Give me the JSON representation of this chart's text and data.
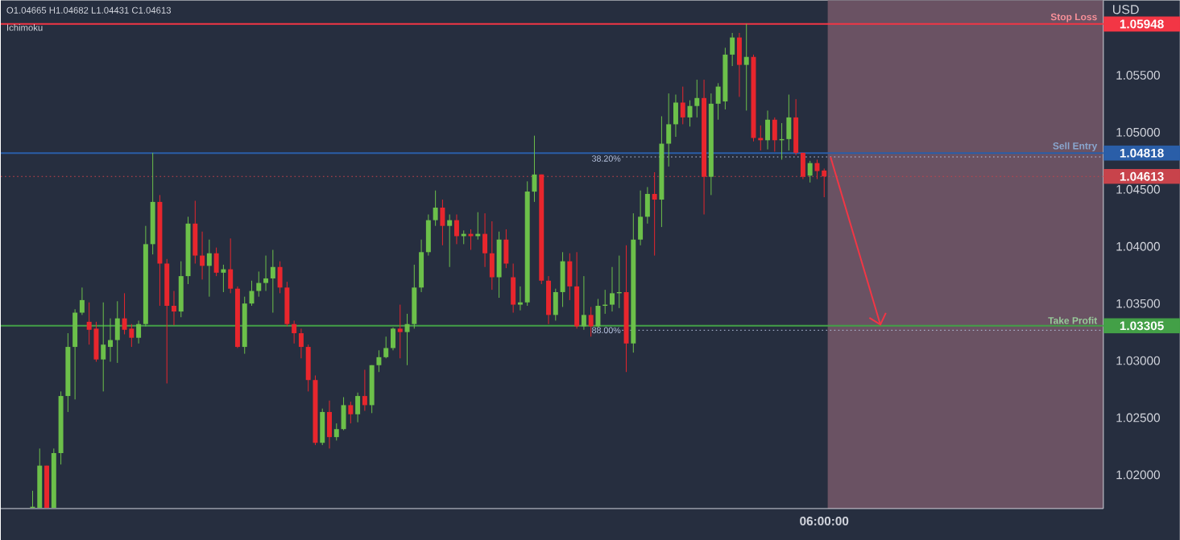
{
  "chart_data": {
    "type": "candlestick",
    "categories": [
      null,
      null,
      null,
      null,
      null,
      null,
      null,
      null,
      null,
      null,
      null,
      null,
      null,
      null,
      null,
      null,
      null,
      null,
      null,
      null,
      null,
      null,
      null,
      null,
      null,
      null,
      null,
      null,
      null,
      null,
      null,
      null,
      null,
      null,
      null,
      null,
      null,
      null,
      null,
      null,
      null,
      null,
      null,
      null,
      null,
      null,
      null,
      null,
      null,
      null,
      null,
      null,
      null,
      null,
      null,
      null,
      null,
      null,
      null,
      null,
      null,
      null,
      null,
      null,
      null,
      null,
      null,
      null,
      null,
      null,
      null,
      null,
      null,
      null,
      null,
      null,
      null,
      null,
      null,
      null,
      null,
      null,
      null,
      null,
      null,
      null,
      null,
      null,
      null,
      null,
      null,
      null,
      null,
      null,
      null,
      null,
      null,
      null,
      null,
      null,
      null,
      null,
      null,
      null,
      null,
      null,
      null,
      null,
      null,
      null,
      null,
      null,
      null,
      null,
      null,
      null,
      "06:00:00",
      null,
      null,
      null,
      null,
      null,
      null,
      null,
      null,
      null,
      null,
      null,
      null,
      null,
      null,
      null,
      null,
      null,
      null,
      null,
      null,
      null,
      null,
      null,
      null,
      null,
      null,
      null,
      null,
      null,
      null,
      null,
      null,
      null,
      null,
      null,
      null,
      null,
      null,
      null
    ],
    "ohlc": [
      null,
      null,
      null,
      null,
      [
        1.0171,
        1.0186,
        1.0171,
        1.0172
      ],
      [
        1.0171,
        1.0223,
        1.0171,
        1.0208
      ],
      [
        1.0208,
        1.0208,
        1.0171,
        1.0171
      ],
      [
        1.0171,
        1.0223,
        1.0171,
        1.0219
      ],
      [
        1.0219,
        1.0273,
        1.0209,
        1.0269
      ],
      [
        1.0269,
        1.0324,
        1.0255,
        1.0312
      ],
      [
        1.0312,
        1.0345,
        1.0266,
        1.0342
      ],
      [
        1.0342,
        1.0364,
        1.034,
        1.0353
      ],
      [
        1.0334,
        1.0351,
        1.0314,
        1.0327
      ],
      [
        1.0328,
        1.0334,
        1.0299,
        1.0301
      ],
      [
        1.0301,
        1.0351,
        1.0273,
        1.0314
      ],
      [
        1.0312,
        1.0337,
        1.0299,
        1.0318
      ],
      [
        1.0318,
        1.0352,
        1.0298,
        1.0337
      ],
      [
        1.0337,
        1.0359,
        1.0323,
        1.0327
      ],
      [
        1.0328,
        1.0332,
        1.0312,
        1.032
      ],
      [
        1.032,
        1.0335,
        1.0315,
        1.0332
      ],
      [
        1.0332,
        1.0418,
        1.033,
        1.0402
      ],
      [
        1.0402,
        1.0482,
        1.0393,
        1.0439
      ],
      [
        1.0439,
        1.0445,
        1.0348,
        1.0385
      ],
      [
        1.0385,
        1.0389,
        1.028,
        1.0348
      ],
      [
        1.0348,
        1.0361,
        1.0331,
        1.0343
      ],
      [
        1.0343,
        1.0387,
        1.0338,
        1.0374
      ],
      [
        1.0374,
        1.0426,
        1.0367,
        1.042
      ],
      [
        1.042,
        1.044,
        1.0385,
        1.0392
      ],
      [
        1.0392,
        1.0413,
        1.0371,
        1.0383
      ],
      [
        1.0383,
        1.0406,
        1.0356,
        1.0394
      ],
      [
        1.0394,
        1.0399,
        1.0374,
        1.0377
      ],
      [
        1.0377,
        1.0384,
        1.036,
        1.038
      ],
      [
        1.038,
        1.0407,
        1.0359,
        1.0363
      ],
      [
        1.0363,
        1.0365,
        1.0311,
        1.0312
      ],
      [
        1.0312,
        1.0356,
        1.0306,
        1.035
      ],
      [
        1.035,
        1.037,
        1.0348,
        1.0361
      ],
      [
        1.0361,
        1.0378,
        1.0356,
        1.0368
      ],
      [
        1.0368,
        1.0392,
        1.0361,
        1.0372
      ],
      [
        1.0372,
        1.0397,
        1.0342,
        1.0382
      ],
      [
        1.0382,
        1.0387,
        1.0359,
        1.0364
      ],
      [
        1.0364,
        1.0369,
        1.033,
        1.0332
      ],
      [
        1.0332,
        1.0335,
        1.0315,
        1.0324
      ],
      [
        1.0324,
        1.0328,
        1.0302,
        1.0312
      ],
      [
        1.0312,
        1.0314,
        1.0273,
        1.0283
      ],
      [
        1.0283,
        1.0287,
        1.0226,
        1.0228
      ],
      [
        1.0228,
        1.0258,
        1.0226,
        1.0255
      ],
      [
        1.0255,
        1.0265,
        1.0223,
        1.0233
      ],
      [
        1.0233,
        1.0245,
        1.023,
        1.024
      ],
      [
        1.024,
        1.0268,
        1.0239,
        1.0261
      ],
      [
        1.0261,
        1.0264,
        1.0245,
        1.0253
      ],
      [
        1.0253,
        1.0272,
        1.0246,
        1.0269
      ],
      [
        1.0269,
        1.0292,
        1.0256,
        1.0261
      ],
      [
        1.0261,
        1.0296,
        1.0254,
        1.0296
      ],
      [
        1.0296,
        1.0309,
        1.029,
        1.0303
      ],
      [
        1.0303,
        1.0321,
        1.0302,
        1.0311
      ],
      [
        1.0311,
        1.0329,
        1.0309,
        1.0328
      ],
      [
        1.0328,
        1.0349,
        1.0302,
        1.0325
      ],
      [
        1.0325,
        1.0341,
        1.0296,
        1.0332
      ],
      [
        1.0332,
        1.0384,
        1.0328,
        1.0364
      ],
      [
        1.0364,
        1.0406,
        1.036,
        1.0395
      ],
      [
        1.0395,
        1.0428,
        1.0392,
        1.0423
      ],
      [
        1.0423,
        1.0449,
        1.0418,
        1.0434
      ],
      [
        1.0434,
        1.0441,
        1.0401,
        1.0418
      ],
      [
        1.0418,
        1.0428,
        1.0382,
        1.0423
      ],
      [
        1.0423,
        1.0428,
        1.0402,
        1.0409
      ],
      [
        1.0409,
        1.0414,
        1.0402,
        1.0411
      ],
      [
        1.0411,
        1.0415,
        1.0397,
        1.0409
      ],
      [
        1.0409,
        1.043,
        1.0406,
        1.0411
      ],
      [
        1.0411,
        1.0429,
        1.0382,
        1.0394
      ],
      [
        1.0394,
        1.0422,
        1.0362,
        1.0373
      ],
      [
        1.0373,
        1.0413,
        1.0355,
        1.0406
      ],
      [
        1.0406,
        1.0415,
        1.0381,
        1.0385
      ],
      [
        1.0373,
        1.0385,
        1.0342,
        1.0349
      ],
      [
        1.0349,
        1.0365,
        1.0344,
        1.0351
      ],
      [
        1.0351,
        1.0457,
        1.0348,
        1.0448
      ],
      [
        1.0448,
        1.0497,
        1.0439,
        1.0463
      ],
      [
        1.0463,
        1.0463,
        1.0367,
        1.037
      ],
      [
        1.037,
        1.0374,
        1.0332,
        1.034
      ],
      [
        1.034,
        1.0363,
        1.0335,
        1.036
      ],
      [
        1.036,
        1.0395,
        1.0347,
        1.0387
      ],
      [
        1.0387,
        1.0394,
        1.0353,
        1.0365
      ],
      [
        1.0365,
        1.0395,
        1.0328,
        1.033
      ],
      [
        1.033,
        1.0374,
        1.0327,
        1.034
      ],
      [
        1.034,
        1.0347,
        1.0321,
        1.033
      ],
      [
        1.033,
        1.0354,
        1.0329,
        1.0348
      ],
      [
        1.0348,
        1.0362,
        1.0341,
        1.0349
      ],
      [
        1.0349,
        1.0382,
        1.0343,
        1.0359
      ],
      [
        1.0359,
        1.0392,
        1.0346,
        1.036
      ],
      [
        1.036,
        1.0401,
        1.029,
        1.0315
      ],
      [
        1.0315,
        1.0429,
        1.0307,
        1.0406
      ],
      [
        1.0406,
        1.0449,
        1.0401,
        1.0426
      ],
      [
        1.0426,
        1.0452,
        1.042,
        1.0446
      ],
      [
        1.0446,
        1.0465,
        1.0392,
        1.0441
      ],
      [
        1.0441,
        1.0514,
        1.0417,
        1.049
      ],
      [
        1.049,
        1.0534,
        1.047,
        1.0507
      ],
      [
        1.0507,
        1.0533,
        1.0496,
        1.0526
      ],
      [
        1.0526,
        1.054,
        1.0507,
        1.0513
      ],
      [
        1.0513,
        1.0528,
        1.0505,
        1.0523
      ],
      [
        1.0523,
        1.0546,
        1.0513,
        1.053
      ],
      [
        1.053,
        1.0546,
        1.0428,
        1.0461
      ],
      [
        1.0461,
        1.0534,
        1.0445,
        1.0525
      ],
      [
        1.0525,
        1.0543,
        1.0511,
        1.054
      ],
      [
        1.0527,
        1.0574,
        1.052,
        1.0568
      ],
      [
        1.0568,
        1.0587,
        1.0558,
        1.0583
      ],
      [
        1.0583,
        1.0587,
        1.0531,
        1.0559
      ],
      [
        1.0559,
        1.0595,
        1.0519,
        1.0566
      ],
      [
        1.0566,
        1.0568,
        1.0492,
        1.0495
      ],
      [
        1.0495,
        1.0506,
        1.0484,
        1.0493
      ],
      [
        1.0493,
        1.0519,
        1.0485,
        1.0511
      ],
      [
        1.0511,
        1.0513,
        1.0483,
        1.0493
      ],
      [
        1.0493,
        1.0508,
        1.0476,
        1.0494
      ],
      [
        1.0494,
        1.0533,
        1.0484,
        1.0513
      ],
      [
        1.0513,
        1.0529,
        1.048,
        1.0482
      ],
      [
        1.0482,
        1.0482,
        1.0459,
        1.0461
      ],
      [
        1.0462,
        1.0475,
        1.0456,
        1.0473
      ],
      [
        1.0473,
        1.0476,
        1.0459,
        1.0466
      ],
      [
        1.04665,
        1.04682,
        1.04431,
        1.04613
      ],
      null,
      null,
      null,
      null,
      null,
      null,
      null,
      null,
      null,
      null,
      null,
      null,
      null,
      null,
      null,
      null,
      null,
      null,
      null,
      null,
      null,
      null,
      null,
      null,
      null,
      null,
      null,
      null,
      null,
      null,
      null,
      null,
      null,
      null,
      null,
      null,
      null,
      null,
      null
    ],
    "colors": [
      null,
      null,
      null,
      null,
      "#6cc04a",
      "#6cc04a",
      "#e8262d",
      "#6cc04a",
      "#6cc04a",
      "#6cc04a",
      "#6cc04a",
      "#6cc04a",
      "#e8262d",
      "#e8262d",
      "#6cc04a",
      "#6cc04a",
      "#6cc04a",
      "#e8262d",
      "#e8262d",
      "#6cc04a",
      "#6cc04a",
      "#6cc04a",
      "#e8262d",
      "#e8262d",
      "#e8262d",
      "#6cc04a",
      "#6cc04a",
      "#e8262d",
      "#e8262d",
      "#6cc04a",
      "#e8262d",
      "#6cc04a",
      "#e8262d",
      "#e8262d",
      "#6cc04a",
      "#6cc04a",
      "#6cc04a",
      "#6cc04a",
      "#6cc04a",
      "#e8262d",
      "#e8262d",
      "#e8262d",
      "#e8262d",
      "#e8262d",
      "#e8262d",
      "#6cc04a",
      "#e8262d",
      "#6cc04a",
      "#6cc04a",
      "#e8262d",
      "#6cc04a",
      "#e8262d",
      "#6cc04a",
      "#6cc04a",
      "#6cc04a",
      "#6cc04a",
      "#e8262d",
      "#6cc04a",
      "#6cc04a",
      "#6cc04a",
      "#6cc04a",
      "#6cc04a",
      "#e8262d",
      "#6cc04a",
      "#e8262d",
      "#6cc04a",
      "#e8262d",
      "#6cc04a",
      "#e8262d",
      "#e8262d",
      "#6cc04a",
      "#e8262d",
      "#e8262d",
      "#6cc04a",
      "#6cc04a",
      "#6cc04a",
      "#e8262d",
      "#e8262d",
      "#6cc04a",
      "#6cc04a",
      "#e8262d",
      "#e8262d",
      "#6cc04a",
      "#e8262d",
      "#6cc04a",
      "#6cc04a",
      "#6cc04a",
      "#6cc04a",
      "#e8262d",
      "#6cc04a",
      "#6cc04a",
      "#6cc04a",
      "#e8262d",
      "#6cc04a",
      "#6cc04a",
      "#6cc04a",
      "#e8262d",
      "#6cc04a",
      "#6cc04a",
      "#e8262d",
      "#6cc04a",
      "#6cc04a",
      "#6cc04a",
      "#6cc04a",
      "#e8262d",
      "#6cc04a",
      "#e8262d",
      "#e8262d",
      "#6cc04a",
      "#e8262d",
      "#6cc04a",
      "#6cc04a",
      "#e8262d",
      "#e8262d",
      "#6cc04a",
      "#e8262d",
      "#e8262d",
      null,
      null,
      null,
      null,
      null,
      null,
      null,
      null,
      null,
      null,
      null,
      null,
      null,
      null,
      null,
      null,
      null,
      null,
      null,
      null,
      null,
      null,
      null,
      null,
      null,
      null,
      null,
      null,
      null,
      null,
      null,
      null,
      null,
      null,
      null,
      null,
      null,
      null,
      null
    ],
    "ylabel": "USD",
    "ylim": [
      1.01704,
      1.06155
    ],
    "yticks": [
      {
        "value": 1.02,
        "label": "1.02000"
      },
      {
        "value": 1.025,
        "label": "1.02500"
      },
      {
        "value": 1.03,
        "label": "1.03000"
      },
      {
        "value": 1.035,
        "label": "1.03500"
      },
      {
        "value": 1.04,
        "label": "1.04000"
      },
      {
        "value": 1.045,
        "label": "1.04500"
      },
      {
        "value": 1.05,
        "label": "1.05000"
      },
      {
        "value": 1.055,
        "label": "1.05500"
      }
    ],
    "ref_lines": [
      {
        "axis": "y",
        "value": 1.05948,
        "label": "Stop Loss",
        "color": "#f23645"
      },
      {
        "axis": "y",
        "value": 1.04818,
        "label": "Sell Entry",
        "color": "#2a5ea8"
      },
      {
        "axis": "y",
        "value": 1.04613,
        "label": null,
        "color": "#c8434b",
        "line_style": "dotted"
      },
      {
        "axis": "y",
        "value": 1.03305,
        "label": "Take Profit",
        "color": "#43a047"
      },
      {
        "axis": "y",
        "value": 1.04784,
        "label": null,
        "color": "#b8c4e0",
        "line_style": "dotted"
      },
      {
        "axis": "y",
        "value": 1.03266,
        "label": null,
        "color": "#b8c4e0",
        "line_style": "dotted"
      }
    ],
    "annotations": [
      "O1.04665 H1.04682 L1.04431 C1.04613",
      "Ichimoku",
      "1.05948",
      "1.04818",
      "1.04613",
      "1.03305",
      {
        "text": "38.20%",
        "y": 1.04784
      },
      "88.00%"
    ]
  }
}
